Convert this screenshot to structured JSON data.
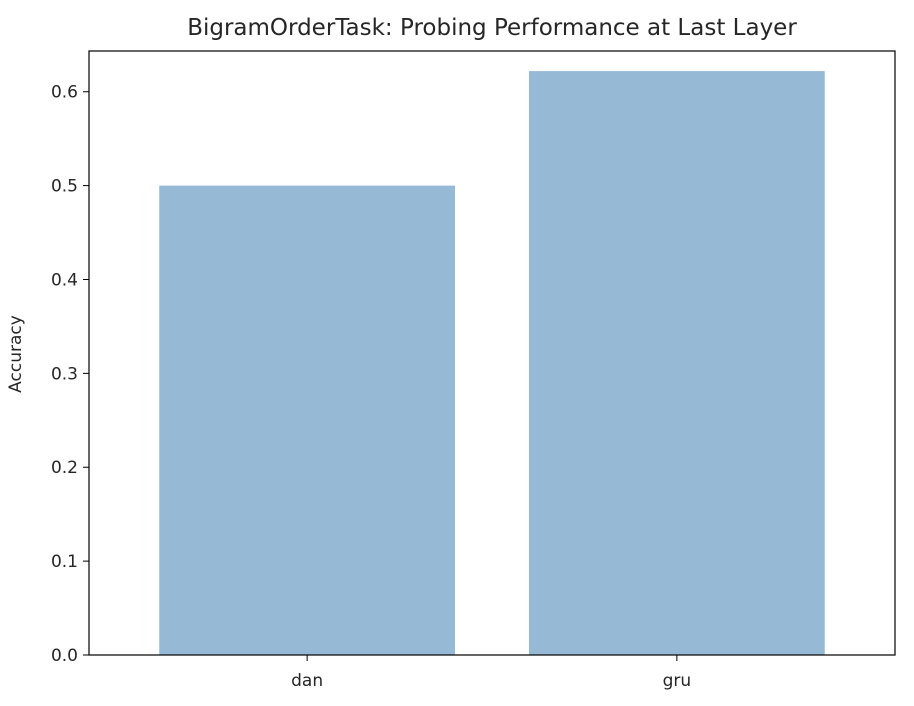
{
  "chart_data": {
    "type": "bar",
    "title": "BigramOrderTask: Probing Performance at Last Layer",
    "xlabel": "",
    "ylabel": "Accuracy",
    "categories": [
      "dan",
      "gru"
    ],
    "values": [
      0.5,
      0.622
    ],
    "ylim": [
      0,
      0.6434
    ],
    "yticks": [
      "0.0",
      "0.1",
      "0.2",
      "0.3",
      "0.4",
      "0.5",
      "0.6"
    ],
    "grid": false,
    "legend": "none",
    "bar_color": "#96b9d5"
  }
}
